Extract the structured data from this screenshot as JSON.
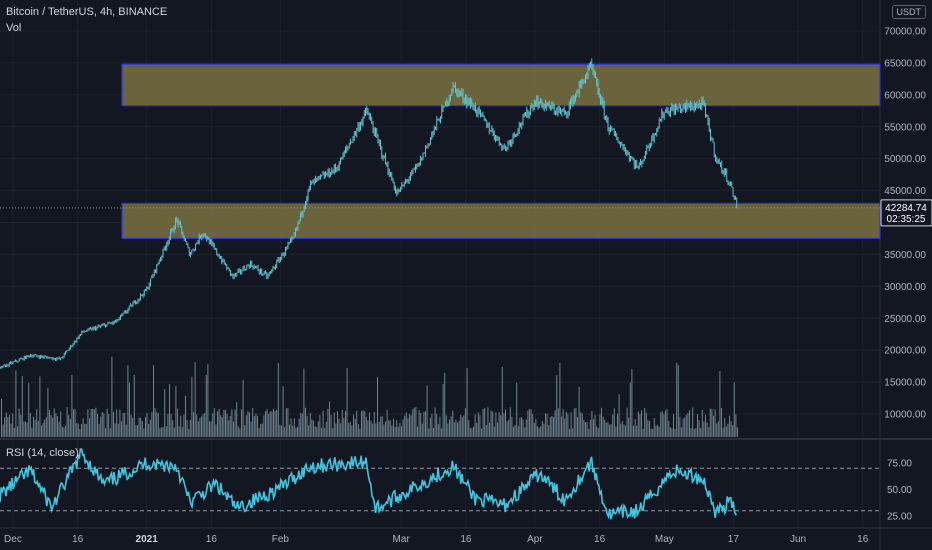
{
  "header": {
    "symbol_title": "Bitcoin / TetherUS, 4h, BINANCE",
    "volume_label": "Vol",
    "rsi_label": "RSI (14, close)",
    "currency_badge": "USDT"
  },
  "price_tag": {
    "value": "42284.74",
    "countdown": "02:35:25"
  },
  "colors": {
    "background": "#131722",
    "candle": "#5fc4cf",
    "volume": "#8da9b4",
    "rsi": "#3ec6e0",
    "zone_fill": "#7a7141",
    "zone_border": "#2a2ff5",
    "grid": "#1e222d"
  },
  "chart_data": [
    {
      "type": "candlestick",
      "title": "Bitcoin / TetherUS, 4h, BINANCE",
      "x_ticks": [
        "Dec",
        "16",
        "2021",
        "16",
        "Feb",
        "Mar",
        "16",
        "Apr",
        "16",
        "May",
        "17",
        "Jun",
        "16"
      ],
      "y_ticks": [
        "70000.00",
        "65000.00",
        "60000.00",
        "55000.00",
        "50000.00",
        "45000.00",
        "40000.00",
        "35000.00",
        "30000.00",
        "25000.00",
        "20000.00",
        "15000.00",
        "10000.00"
      ],
      "ylim": [
        10000,
        70000
      ],
      "last_price": 42284.74,
      "price_path": [
        [
          "2020-11-28",
          17200
        ],
        [
          "2020-12-05",
          19200
        ],
        [
          "2020-12-12",
          18600
        ],
        [
          "2020-12-17",
          22800
        ],
        [
          "2020-12-25",
          24500
        ],
        [
          "2021-01-01",
          29500
        ],
        [
          "2021-01-08",
          40500
        ],
        [
          "2021-01-11",
          35000
        ],
        [
          "2021-01-14",
          38500
        ],
        [
          "2021-01-21",
          31500
        ],
        [
          "2021-01-25",
          33500
        ],
        [
          "2021-01-29",
          31500
        ],
        [
          "2021-02-04",
          37500
        ],
        [
          "2021-02-08",
          46000
        ],
        [
          "2021-02-14",
          48500
        ],
        [
          "2021-02-21",
          57500
        ],
        [
          "2021-02-28",
          44500
        ],
        [
          "2021-03-05",
          49000
        ],
        [
          "2021-03-13",
          61200
        ],
        [
          "2021-03-18",
          58000
        ],
        [
          "2021-03-25",
          51500
        ],
        [
          "2021-04-01",
          59000
        ],
        [
          "2021-04-08",
          57000
        ],
        [
          "2021-04-14",
          64500
        ],
        [
          "2021-04-18",
          55000
        ],
        [
          "2021-04-25",
          48500
        ],
        [
          "2021-05-01",
          57500
        ],
        [
          "2021-05-10",
          58500
        ],
        [
          "2021-05-13",
          50000
        ],
        [
          "2021-05-16",
          46500
        ],
        [
          "2021-05-18",
          42285
        ]
      ],
      "zones": [
        {
          "low": 58300,
          "high": 64800
        },
        {
          "low": 37500,
          "high": 43000
        }
      ]
    },
    {
      "type": "bar",
      "title": "Vol",
      "note": "volume histogram, values unlabeled"
    },
    {
      "type": "line",
      "title": "RSI (14, close)",
      "y_ticks": [
        "75.00",
        "50.00",
        "25.00"
      ],
      "ylim": [
        20,
        85
      ],
      "bands": [
        70,
        30
      ],
      "rsi_path": [
        [
          "2020-11-28",
          45
        ],
        [
          "2020-12-05",
          68
        ],
        [
          "2020-12-10",
          33
        ],
        [
          "2020-12-17",
          85
        ],
        [
          "2020-12-22",
          55
        ],
        [
          "2021-01-01",
          75
        ],
        [
          "2021-01-08",
          72
        ],
        [
          "2021-01-11",
          38
        ],
        [
          "2021-01-17",
          55
        ],
        [
          "2021-01-22",
          32
        ],
        [
          "2021-02-01",
          52
        ],
        [
          "2021-02-08",
          72
        ],
        [
          "2021-02-21",
          76
        ],
        [
          "2021-02-23",
          32
        ],
        [
          "2021-03-01",
          45
        ],
        [
          "2021-03-13",
          72
        ],
        [
          "2021-03-18",
          42
        ],
        [
          "2021-03-25",
          35
        ],
        [
          "2021-04-02",
          65
        ],
        [
          "2021-04-08",
          40
        ],
        [
          "2021-04-14",
          76
        ],
        [
          "2021-04-18",
          26
        ],
        [
          "2021-04-25",
          30
        ],
        [
          "2021-05-03",
          68
        ],
        [
          "2021-05-10",
          60
        ],
        [
          "2021-05-13",
          28
        ],
        [
          "2021-05-16",
          38
        ],
        [
          "2021-05-18",
          28
        ]
      ]
    }
  ]
}
